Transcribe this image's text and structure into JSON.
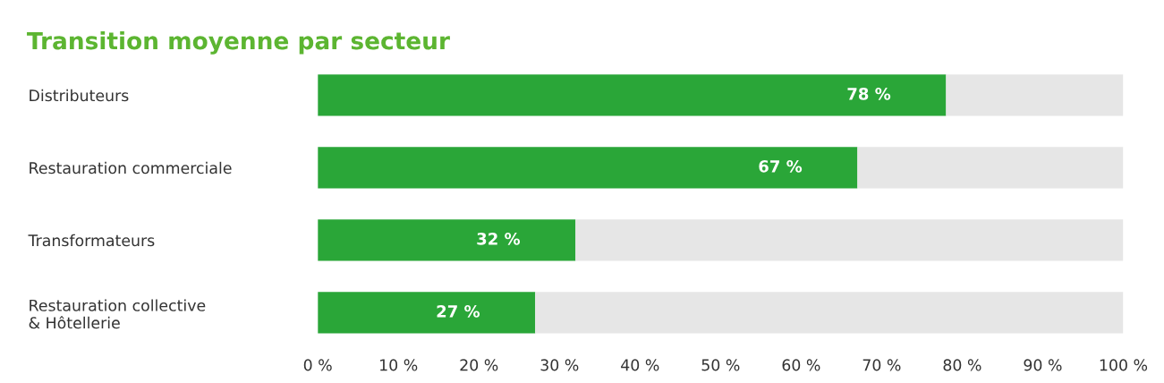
{
  "chart_data": {
    "type": "bar",
    "orientation": "horizontal",
    "stacked": true,
    "title": "Transition moyenne par secteur",
    "categories": [
      "Distributeurs",
      "Restauration commerciale",
      "Transformateurs",
      "Restauration collective\n& Hôtellerie"
    ],
    "series": [
      {
        "color": "#2aa638",
        "values": [
          78,
          67,
          32,
          27
        ],
        "value_labels": [
          "78 %",
          "67 %",
          "32 %",
          "27 %"
        ]
      },
      {
        "color": "#e6e6e6",
        "values": [
          22,
          33,
          68,
          73
        ]
      }
    ],
    "xlim": [
      0,
      100
    ],
    "xticks": [
      {
        "value": 0,
        "label": "0 %"
      },
      {
        "value": 10,
        "label": "10 %"
      },
      {
        "value": 20,
        "label": "20 %"
      },
      {
        "value": 30,
        "label": "30 %"
      },
      {
        "value": 40,
        "label": "40 %"
      },
      {
        "value": 50,
        "label": "50 %"
      },
      {
        "value": 60,
        "label": "60 %"
      },
      {
        "value": 70,
        "label": "70 %"
      },
      {
        "value": 80,
        "label": "80 %"
      },
      {
        "value": 90,
        "label": "90 %"
      },
      {
        "value": 100,
        "label": "100 %"
      }
    ],
    "grid": false,
    "legend": false
  }
}
